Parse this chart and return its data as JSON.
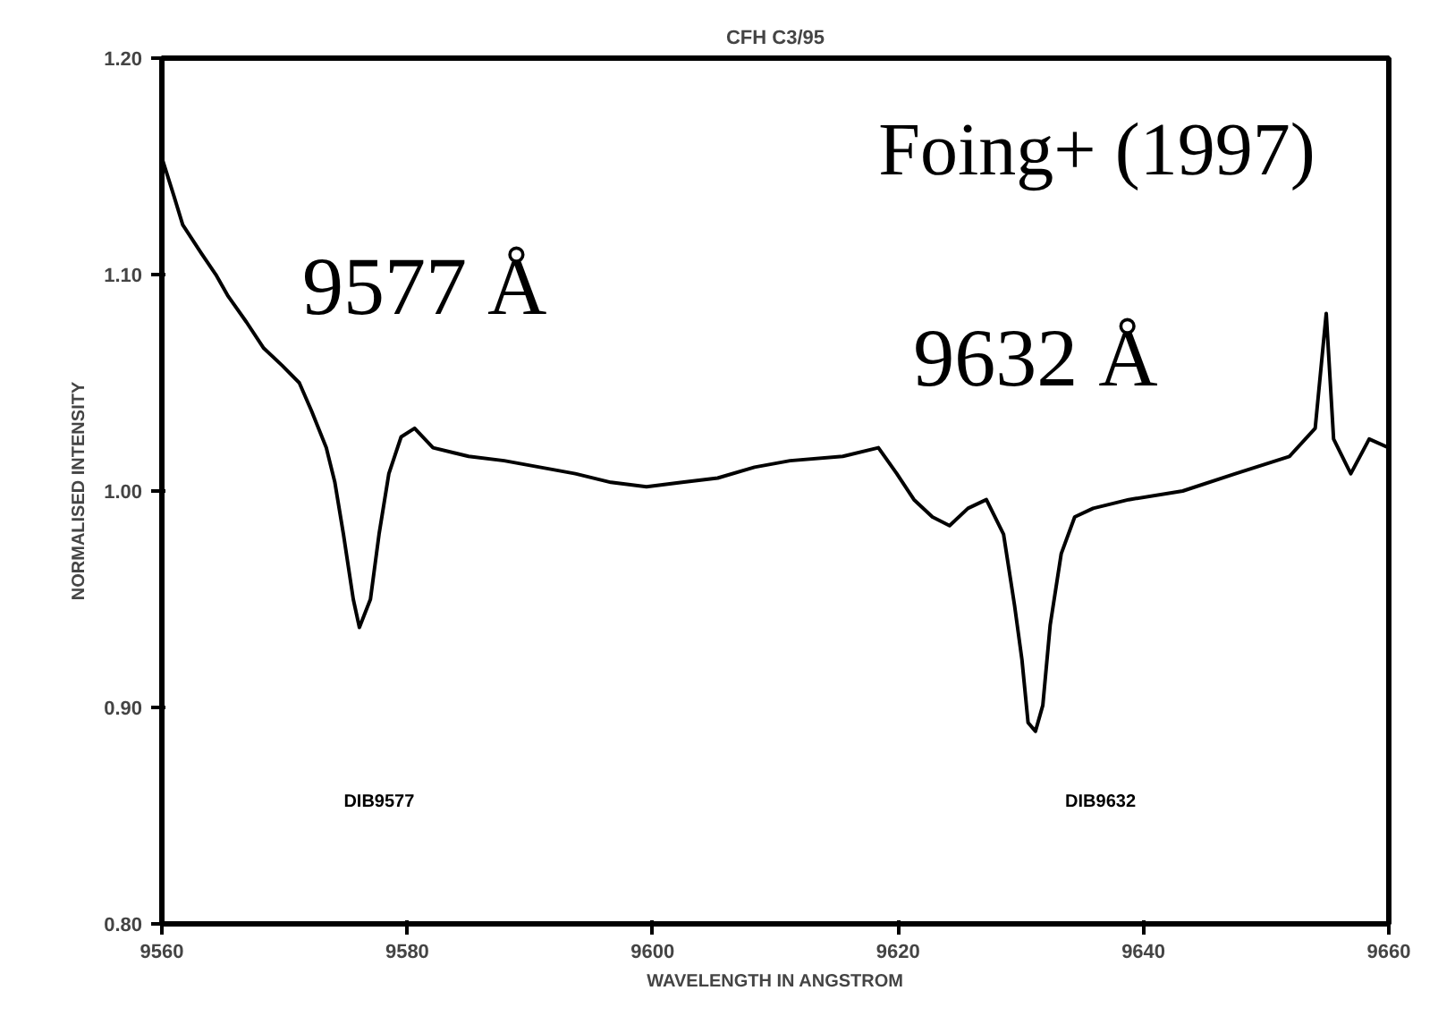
{
  "chart_data": {
    "type": "line",
    "title": "CFH C3/95",
    "xlabel": "WAVELENGTH IN ANGSTROM",
    "ylabel": "NORMALISED INTENSITY",
    "x": [
      9560.0,
      9561.0,
      9561.7,
      9563.2,
      9564.4,
      9565.4,
      9566.9,
      9568.3,
      9569.8,
      9571.2,
      9572.2,
      9573.4,
      9574.1,
      9574.8,
      9575.6,
      9576.1,
      9577.0,
      9577.7,
      9578.5,
      9579.5,
      9580.6,
      9582.1,
      9585.0,
      9587.9,
      9590.8,
      9593.7,
      9596.6,
      9599.5,
      9602.4,
      9605.3,
      9608.3,
      9611.2,
      9615.5,
      9618.4,
      9619.9,
      9621.3,
      9622.8,
      9624.2,
      9625.7,
      9627.2,
      9628.6,
      9629.5,
      9630.1,
      9630.6,
      9631.2,
      9631.8,
      9632.4,
      9633.3,
      9634.4,
      9635.9,
      9638.8,
      9643.2,
      9647.5,
      9651.9,
      9654.0,
      9654.9,
      9655.5,
      9656.9,
      9658.4,
      9660.0
    ],
    "series": [
      {
        "color": "#000000",
        "values": [
          1.154,
          1.136,
          1.123,
          1.11,
          1.1,
          1.09,
          1.078,
          1.066,
          1.058,
          1.05,
          1.037,
          1.02,
          1.004,
          0.98,
          0.95,
          0.937,
          0.95,
          0.98,
          1.008,
          1.025,
          1.029,
          1.02,
          1.016,
          1.014,
          1.011,
          1.008,
          1.004,
          1.002,
          1.004,
          1.006,
          1.011,
          1.014,
          1.016,
          1.02,
          1.008,
          0.996,
          0.988,
          0.984,
          0.992,
          0.996,
          0.98,
          0.947,
          0.922,
          0.893,
          0.889,
          0.901,
          0.938,
          0.971,
          0.988,
          0.992,
          0.996,
          1.0,
          1.008,
          1.016,
          1.029,
          1.082,
          1.024,
          1.008,
          1.024,
          1.02
        ]
      }
    ],
    "xlim": [
      9560,
      9660
    ],
    "xticks": [
      9560,
      9580,
      9600,
      9620,
      9640,
      9660
    ],
    "ylim": [
      0.8,
      1.2
    ],
    "yticks": [
      {
        "value": 0.8,
        "label": "0.80"
      },
      {
        "value": 0.9,
        "label": "0.90"
      },
      {
        "value": 1.0,
        "label": "1.00"
      },
      {
        "value": 1.1,
        "label": "1.10"
      },
      {
        "value": 1.2,
        "label": "1.20"
      }
    ],
    "grid": false,
    "marker": "none",
    "line_style": "solid",
    "annotations": [
      "DIB9577",
      "DIB9632",
      "9577 Å",
      "9632 Å",
      "Foing+ (1997)"
    ]
  }
}
